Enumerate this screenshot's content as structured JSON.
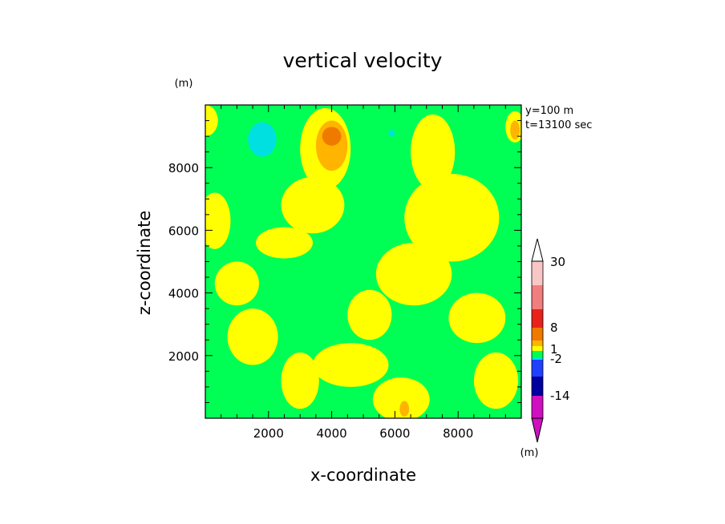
{
  "chart_data": {
    "type": "heatmap",
    "title": "vertical velocity",
    "xlabel": "x-coordinate",
    "ylabel": "z-coordinate",
    "x_unit": "(m)",
    "y_unit": "(m)",
    "xlim": [
      0,
      10000
    ],
    "ylim": [
      0,
      10000
    ],
    "x_ticks": [
      2000,
      4000,
      6000,
      8000
    ],
    "y_ticks": [
      2000,
      4000,
      6000,
      8000
    ],
    "x_tick_labels": [
      "2000",
      "4000",
      "6000",
      "8000"
    ],
    "y_tick_labels": [
      "2000",
      "4000",
      "6000",
      "8000"
    ],
    "annotations": [
      "y=100 m",
      "t=13100 sec"
    ],
    "colorbar": {
      "unit": "(m)",
      "labels": [
        "30",
        "8",
        "1",
        "-2",
        "-14"
      ],
      "levels_top_to_bottom": [
        {
          "color": "#F9C6C6"
        },
        {
          "color": "#F07E7E"
        },
        {
          "color": "#E8221A"
        },
        {
          "color": "#F07A00"
        },
        {
          "color": "#FFB400"
        },
        {
          "color": "#FFFF00"
        },
        {
          "color": "#00FF55"
        },
        {
          "color": "#00E0E0"
        },
        {
          "color": "#2040FF"
        },
        {
          "color": "#0000A0"
        },
        {
          "color": "#7A12B0"
        },
        {
          "color": "#D010C0"
        }
      ]
    },
    "background_level": "#00FF55",
    "regions": [
      {
        "level": "yellow",
        "color": "#FFFF00",
        "x": 0,
        "z": 9500,
        "rx": 400,
        "rz": 500
      },
      {
        "level": "yellow",
        "color": "#FFFF00",
        "x": 3800,
        "z": 8600,
        "rx": 800,
        "rz": 1300
      },
      {
        "level": "yellow",
        "color": "#FFFF00",
        "x": 3400,
        "z": 6800,
        "rx": 1000,
        "rz": 900
      },
      {
        "level": "yellow",
        "color": "#FFFF00",
        "x": 2500,
        "z": 5600,
        "rx": 900,
        "rz": 500
      },
      {
        "level": "yellow",
        "color": "#FFFF00",
        "x": 7200,
        "z": 8500,
        "rx": 700,
        "rz": 1200
      },
      {
        "level": "yellow",
        "color": "#FFFF00",
        "x": 7800,
        "z": 6400,
        "rx": 1500,
        "rz": 1400
      },
      {
        "level": "yellow",
        "color": "#FFFF00",
        "x": 6600,
        "z": 4600,
        "rx": 1200,
        "rz": 1000
      },
      {
        "level": "yellow",
        "color": "#FFFF00",
        "x": 8600,
        "z": 3200,
        "rx": 900,
        "rz": 800
      },
      {
        "level": "yellow",
        "color": "#FFFF00",
        "x": 1000,
        "z": 4300,
        "rx": 700,
        "rz": 700
      },
      {
        "level": "yellow",
        "color": "#FFFF00",
        "x": 1500,
        "z": 2600,
        "rx": 800,
        "rz": 900
      },
      {
        "level": "yellow",
        "color": "#FFFF00",
        "x": 4600,
        "z": 1700,
        "rx": 1200,
        "rz": 700
      },
      {
        "level": "yellow",
        "color": "#FFFF00",
        "x": 6200,
        "z": 600,
        "rx": 900,
        "rz": 700
      },
      {
        "level": "yellow",
        "color": "#FFFF00",
        "x": 3000,
        "z": 1200,
        "rx": 600,
        "rz": 900
      },
      {
        "level": "yellow",
        "color": "#FFFF00",
        "x": 5200,
        "z": 3300,
        "rx": 700,
        "rz": 800
      },
      {
        "level": "yellow",
        "color": "#FFFF00",
        "x": 300,
        "z": 6300,
        "rx": 500,
        "rz": 900
      },
      {
        "level": "yellow",
        "color": "#FFFF00",
        "x": 9800,
        "z": 9300,
        "rx": 300,
        "rz": 500
      },
      {
        "level": "yellow",
        "color": "#FFFF00",
        "x": 9200,
        "z": 1200,
        "rx": 700,
        "rz": 900
      },
      {
        "level": "orange",
        "color": "#FFB400",
        "x": 4000,
        "z": 8700,
        "rx": 500,
        "rz": 800
      },
      {
        "level": "orange",
        "color": "#FFB400",
        "x": 9800,
        "z": 9200,
        "rx": 150,
        "rz": 300
      },
      {
        "level": "orange",
        "color": "#FFB400",
        "x": 6300,
        "z": 300,
        "rx": 150,
        "rz": 250
      },
      {
        "level": "dark-orange",
        "color": "#F07A00",
        "x": 4000,
        "z": 9000,
        "rx": 300,
        "rz": 300
      },
      {
        "level": "cyan",
        "color": "#00E0E0",
        "x": 1800,
        "z": 8900,
        "rx": 450,
        "rz": 550
      },
      {
        "level": "cyan",
        "color": "#00E0E0",
        "x": 5900,
        "z": 9100,
        "rx": 100,
        "rz": 100
      }
    ]
  }
}
